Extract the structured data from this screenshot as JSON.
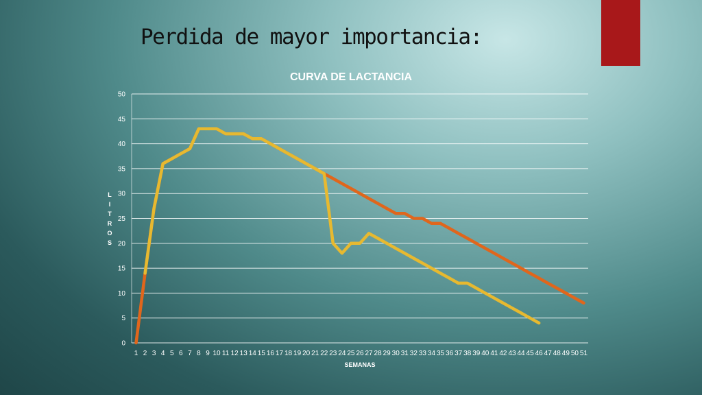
{
  "slide": {
    "title": "Perdida de mayor importancia:",
    "accent_color": "#a8181a"
  },
  "chart_data": {
    "type": "line",
    "title": "CURVA DE LACTANCIA",
    "xlabel": "SEMANAS",
    "ylabel": "L I T R O S",
    "ylim": [
      0,
      50
    ],
    "yticks": [
      0,
      5,
      10,
      15,
      20,
      25,
      30,
      35,
      40,
      45,
      50
    ],
    "categories": [
      "1",
      "2",
      "3",
      "4",
      "5",
      "6",
      "7",
      "8",
      "9",
      "10",
      "11",
      "12",
      "13",
      "14",
      "15",
      "16",
      "17",
      "18",
      "19",
      "20",
      "21",
      "22",
      "23",
      "24",
      "25",
      "26",
      "27",
      "28",
      "29",
      "30",
      "31",
      "32",
      "33",
      "34",
      "35",
      "36",
      "37",
      "38",
      "39",
      "40",
      "41",
      "42",
      "43",
      "44",
      "45",
      "46",
      "47",
      "48",
      "49",
      "50",
      "51"
    ],
    "grid": true,
    "legend": "none",
    "series": [
      {
        "color": "#e0661c",
        "values": [
          0,
          14,
          27,
          36,
          37,
          38,
          39,
          43,
          43,
          43,
          42,
          42,
          42,
          41,
          41,
          40,
          39,
          38,
          37,
          36,
          35,
          34,
          33,
          32,
          31,
          30,
          29,
          28,
          27,
          26,
          26,
          25,
          25,
          24,
          24,
          23,
          22,
          21,
          20,
          19,
          18,
          17,
          16,
          15,
          14,
          13,
          12,
          11,
          10,
          9,
          8
        ]
      },
      {
        "color": "#e7b930",
        "values": [
          null,
          14,
          27,
          36,
          37,
          38,
          39,
          43,
          43,
          43,
          42,
          42,
          42,
          41,
          41,
          40,
          39,
          38,
          37,
          36,
          35,
          34,
          20,
          18,
          20,
          20,
          22,
          21,
          20,
          19,
          18,
          17,
          16,
          15,
          14,
          13,
          12,
          12,
          11,
          10,
          9,
          8,
          7,
          6,
          5,
          4,
          null,
          null,
          null,
          null,
          null
        ]
      }
    ]
  }
}
